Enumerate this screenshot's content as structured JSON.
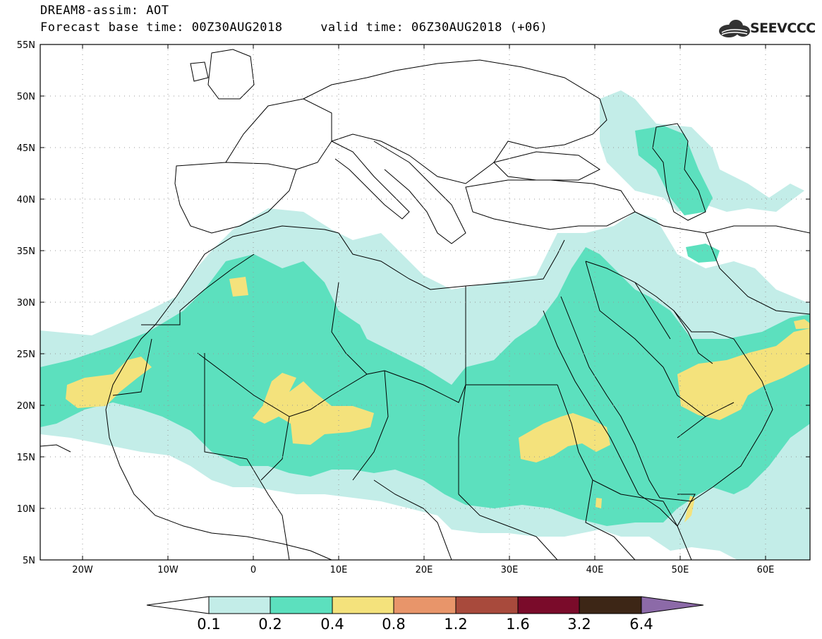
{
  "header": {
    "line1": "DREAM8-assim: AOT",
    "line2": "Forecast base time: 00Z30AUG2018     valid time: 06Z30AUG2018 (+06)"
  },
  "logo": {
    "text": "SEEVCCC",
    "icon": "cloud-logo-icon"
  },
  "map": {
    "lat_labels": [
      "55N",
      "50N",
      "45N",
      "40N",
      "35N",
      "30N",
      "25N",
      "20N",
      "15N",
      "10N",
      "5N"
    ],
    "lon_labels": [
      "20W",
      "10W",
      "0",
      "10E",
      "20E",
      "30E",
      "40E",
      "50E",
      "60E"
    ],
    "colors": {
      "c01": "#c3ede8",
      "c02": "#5ce0be",
      "c04": "#f4e27c",
      "ocean": "#ffffff",
      "border": "#000000"
    }
  },
  "colorbar": {
    "labels": [
      "0.1",
      "0.2",
      "0.4",
      "0.8",
      "1.2",
      "1.6",
      "3.2",
      "6.4"
    ],
    "colors": [
      "#ffffff",
      "#c3ede8",
      "#5ce0be",
      "#f4e27c",
      "#e8956a",
      "#a84a3c",
      "#7a0b2a",
      "#3d2616",
      "#8c6aa8"
    ]
  }
}
